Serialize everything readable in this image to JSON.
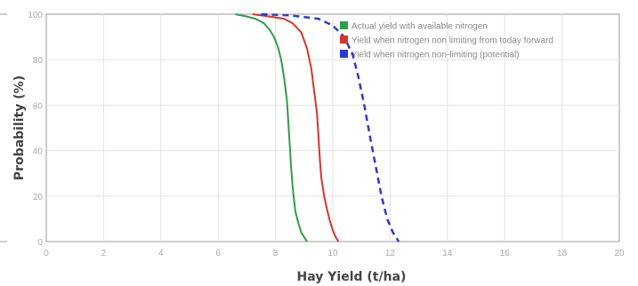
{
  "chart_data": {
    "type": "line",
    "title": "",
    "xlabel": "Hay Yield (t/ha)",
    "ylabel": "Probability (%)",
    "xlim": [
      0,
      20
    ],
    "ylim": [
      0,
      100
    ],
    "x_ticks": [
      "0",
      "2",
      "4",
      "6",
      "8",
      "10",
      "12",
      "14",
      "16",
      "18",
      "20"
    ],
    "y_ticks": [
      "0",
      "20",
      "40",
      "60",
      "80",
      "100"
    ],
    "grid": true,
    "legend_position": "top-right",
    "series": [
      {
        "name": "Actual yield with available nitrogen",
        "color": "#2e9e48",
        "style": "solid",
        "x": [
          6.6,
          7.0,
          7.3,
          7.6,
          7.8,
          7.95,
          8.1,
          8.2,
          8.3,
          8.4,
          8.45,
          8.5,
          8.55,
          8.6,
          8.65,
          8.7,
          8.8,
          8.9,
          9.0,
          9.1
        ],
        "y": [
          100,
          99,
          98,
          96,
          93,
          90,
          85,
          80,
          72,
          62,
          52,
          42,
          32,
          24,
          18,
          13,
          8,
          4,
          2,
          0
        ]
      },
      {
        "name": "Yield when nitrogen non limiting from today forward",
        "color": "#d9342b",
        "style": "solid",
        "x": [
          7.2,
          7.8,
          8.3,
          8.6,
          8.9,
          9.1,
          9.25,
          9.35,
          9.45,
          9.5,
          9.55,
          9.6,
          9.7,
          9.8,
          9.9,
          10.0,
          10.1,
          10.2
        ],
        "y": [
          100,
          99,
          98,
          96,
          92,
          85,
          76,
          66,
          56,
          46,
          36,
          28,
          20,
          14,
          9,
          5,
          2,
          0
        ]
      },
      {
        "name": "Yield when nitrogen non-limiting (potential)",
        "color": "#2b3bd1",
        "style": "dashed",
        "x": [
          7.5,
          8.5,
          9.5,
          10.0,
          10.4,
          10.7,
          10.9,
          11.1,
          11.3,
          11.5,
          11.7,
          11.9,
          12.1,
          12.3
        ],
        "y": [
          100,
          99.5,
          98,
          95,
          90,
          82,
          72,
          60,
          46,
          33,
          20,
          10,
          4,
          0
        ]
      }
    ]
  }
}
